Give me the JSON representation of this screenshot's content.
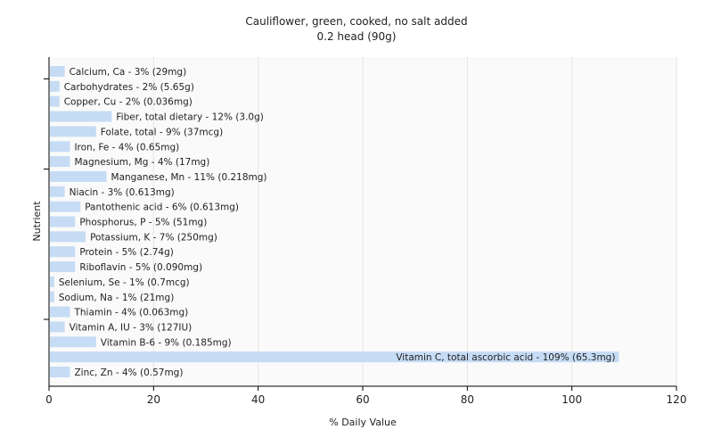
{
  "chart_data": {
    "type": "bar",
    "orientation": "horizontal",
    "title": "Cauliflower, green, cooked, no salt added",
    "subtitle": "0.2 head (90g)",
    "xlabel": "% Daily Value",
    "ylabel": "Nutrient",
    "xlim": [
      0,
      120
    ],
    "xticks": [
      0,
      20,
      40,
      60,
      80,
      100,
      120
    ],
    "grid": true,
    "legend": "none",
    "bar_color": "#c6dcf5",
    "categories": [
      "Calcium, Ca",
      "Carbohydrates",
      "Copper, Cu",
      "Fiber, total dietary",
      "Folate, total",
      "Iron, Fe",
      "Magnesium, Mg",
      "Manganese, Mn",
      "Niacin",
      "Pantothenic acid",
      "Phosphorus, P",
      "Potassium, K",
      "Protein",
      "Riboflavin",
      "Selenium, Se",
      "Sodium, Na",
      "Thiamin",
      "Vitamin A, IU",
      "Vitamin B-6",
      "Vitamin C, total ascorbic acid",
      "Zinc, Zn"
    ],
    "values": [
      3,
      2,
      2,
      12,
      9,
      4,
      4,
      11,
      3,
      6,
      5,
      7,
      5,
      5,
      1,
      1,
      4,
      3,
      9,
      109,
      4
    ],
    "labels": [
      "Calcium, Ca - 3% (29mg)",
      "Carbohydrates - 2% (5.65g)",
      "Copper, Cu - 2% (0.036mg)",
      "Fiber, total dietary - 12% (3.0g)",
      "Folate, total - 9% (37mcg)",
      "Iron, Fe - 4% (0.65mg)",
      "Magnesium, Mg - 4% (17mg)",
      "Manganese, Mn - 11% (0.218mg)",
      "Niacin - 3% (0.613mg)",
      "Pantothenic acid - 6% (0.613mg)",
      "Phosphorus, P - 5% (51mg)",
      "Potassium, K - 7% (250mg)",
      "Protein - 5% (2.74g)",
      "Riboflavin - 5% (0.090mg)",
      "Selenium, Se - 1% (0.7mcg)",
      "Sodium, Na - 1% (21mg)",
      "Thiamin - 4% (0.063mg)",
      "Vitamin A, IU - 3% (127IU)",
      "Vitamin B-6 - 9% (0.185mg)",
      "Vitamin C, total ascorbic acid - 109% (65.3mg)",
      "Zinc, Zn - 4% (0.57mg)"
    ]
  }
}
